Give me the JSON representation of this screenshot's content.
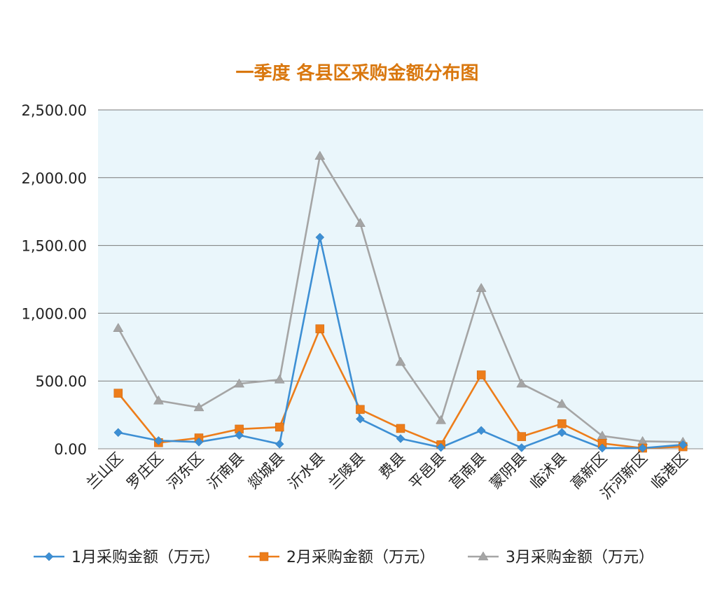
{
  "chart_data": {
    "type": "line",
    "title": "一季度 各县区采购金额分布图",
    "categories": [
      "兰山区",
      "罗庄区",
      "河东区",
      "沂南县",
      "郯城县",
      "沂水县",
      "兰陵县",
      "费县",
      "平邑县",
      "莒南县",
      "蒙阴县",
      "临沭县",
      "高新区",
      "沂河新区",
      "临港区"
    ],
    "ylim": [
      0,
      2500
    ],
    "yticks": [
      0,
      500,
      1000,
      1500,
      2000,
      2500
    ],
    "ytick_labels": [
      "0.00",
      "500.00",
      "1,000.00",
      "1,500.00",
      "2,000.00",
      "2,500.00"
    ],
    "grid": true,
    "legend_position": "bottom",
    "series": [
      {
        "name": "1月采购金额（万元）",
        "color": "#3d8fd4",
        "marker": "diamond",
        "values": [
          120,
          60,
          50,
          100,
          35,
          1560,
          220,
          75,
          10,
          135,
          8,
          120,
          5,
          5,
          30
        ]
      },
      {
        "name": "2月采购金额（万元）",
        "color": "#ed7d1a",
        "marker": "square",
        "values": [
          410,
          45,
          80,
          145,
          160,
          885,
          290,
          150,
          30,
          545,
          90,
          185,
          40,
          5,
          15
        ]
      },
      {
        "name": "3月采购金额（万元）",
        "color": "#a5a5a5",
        "marker": "triangle",
        "values": [
          890,
          355,
          305,
          480,
          510,
          2160,
          1665,
          640,
          210,
          1185,
          480,
          330,
          95,
          55,
          50
        ]
      }
    ],
    "plot_background": "#eaf6fb"
  }
}
